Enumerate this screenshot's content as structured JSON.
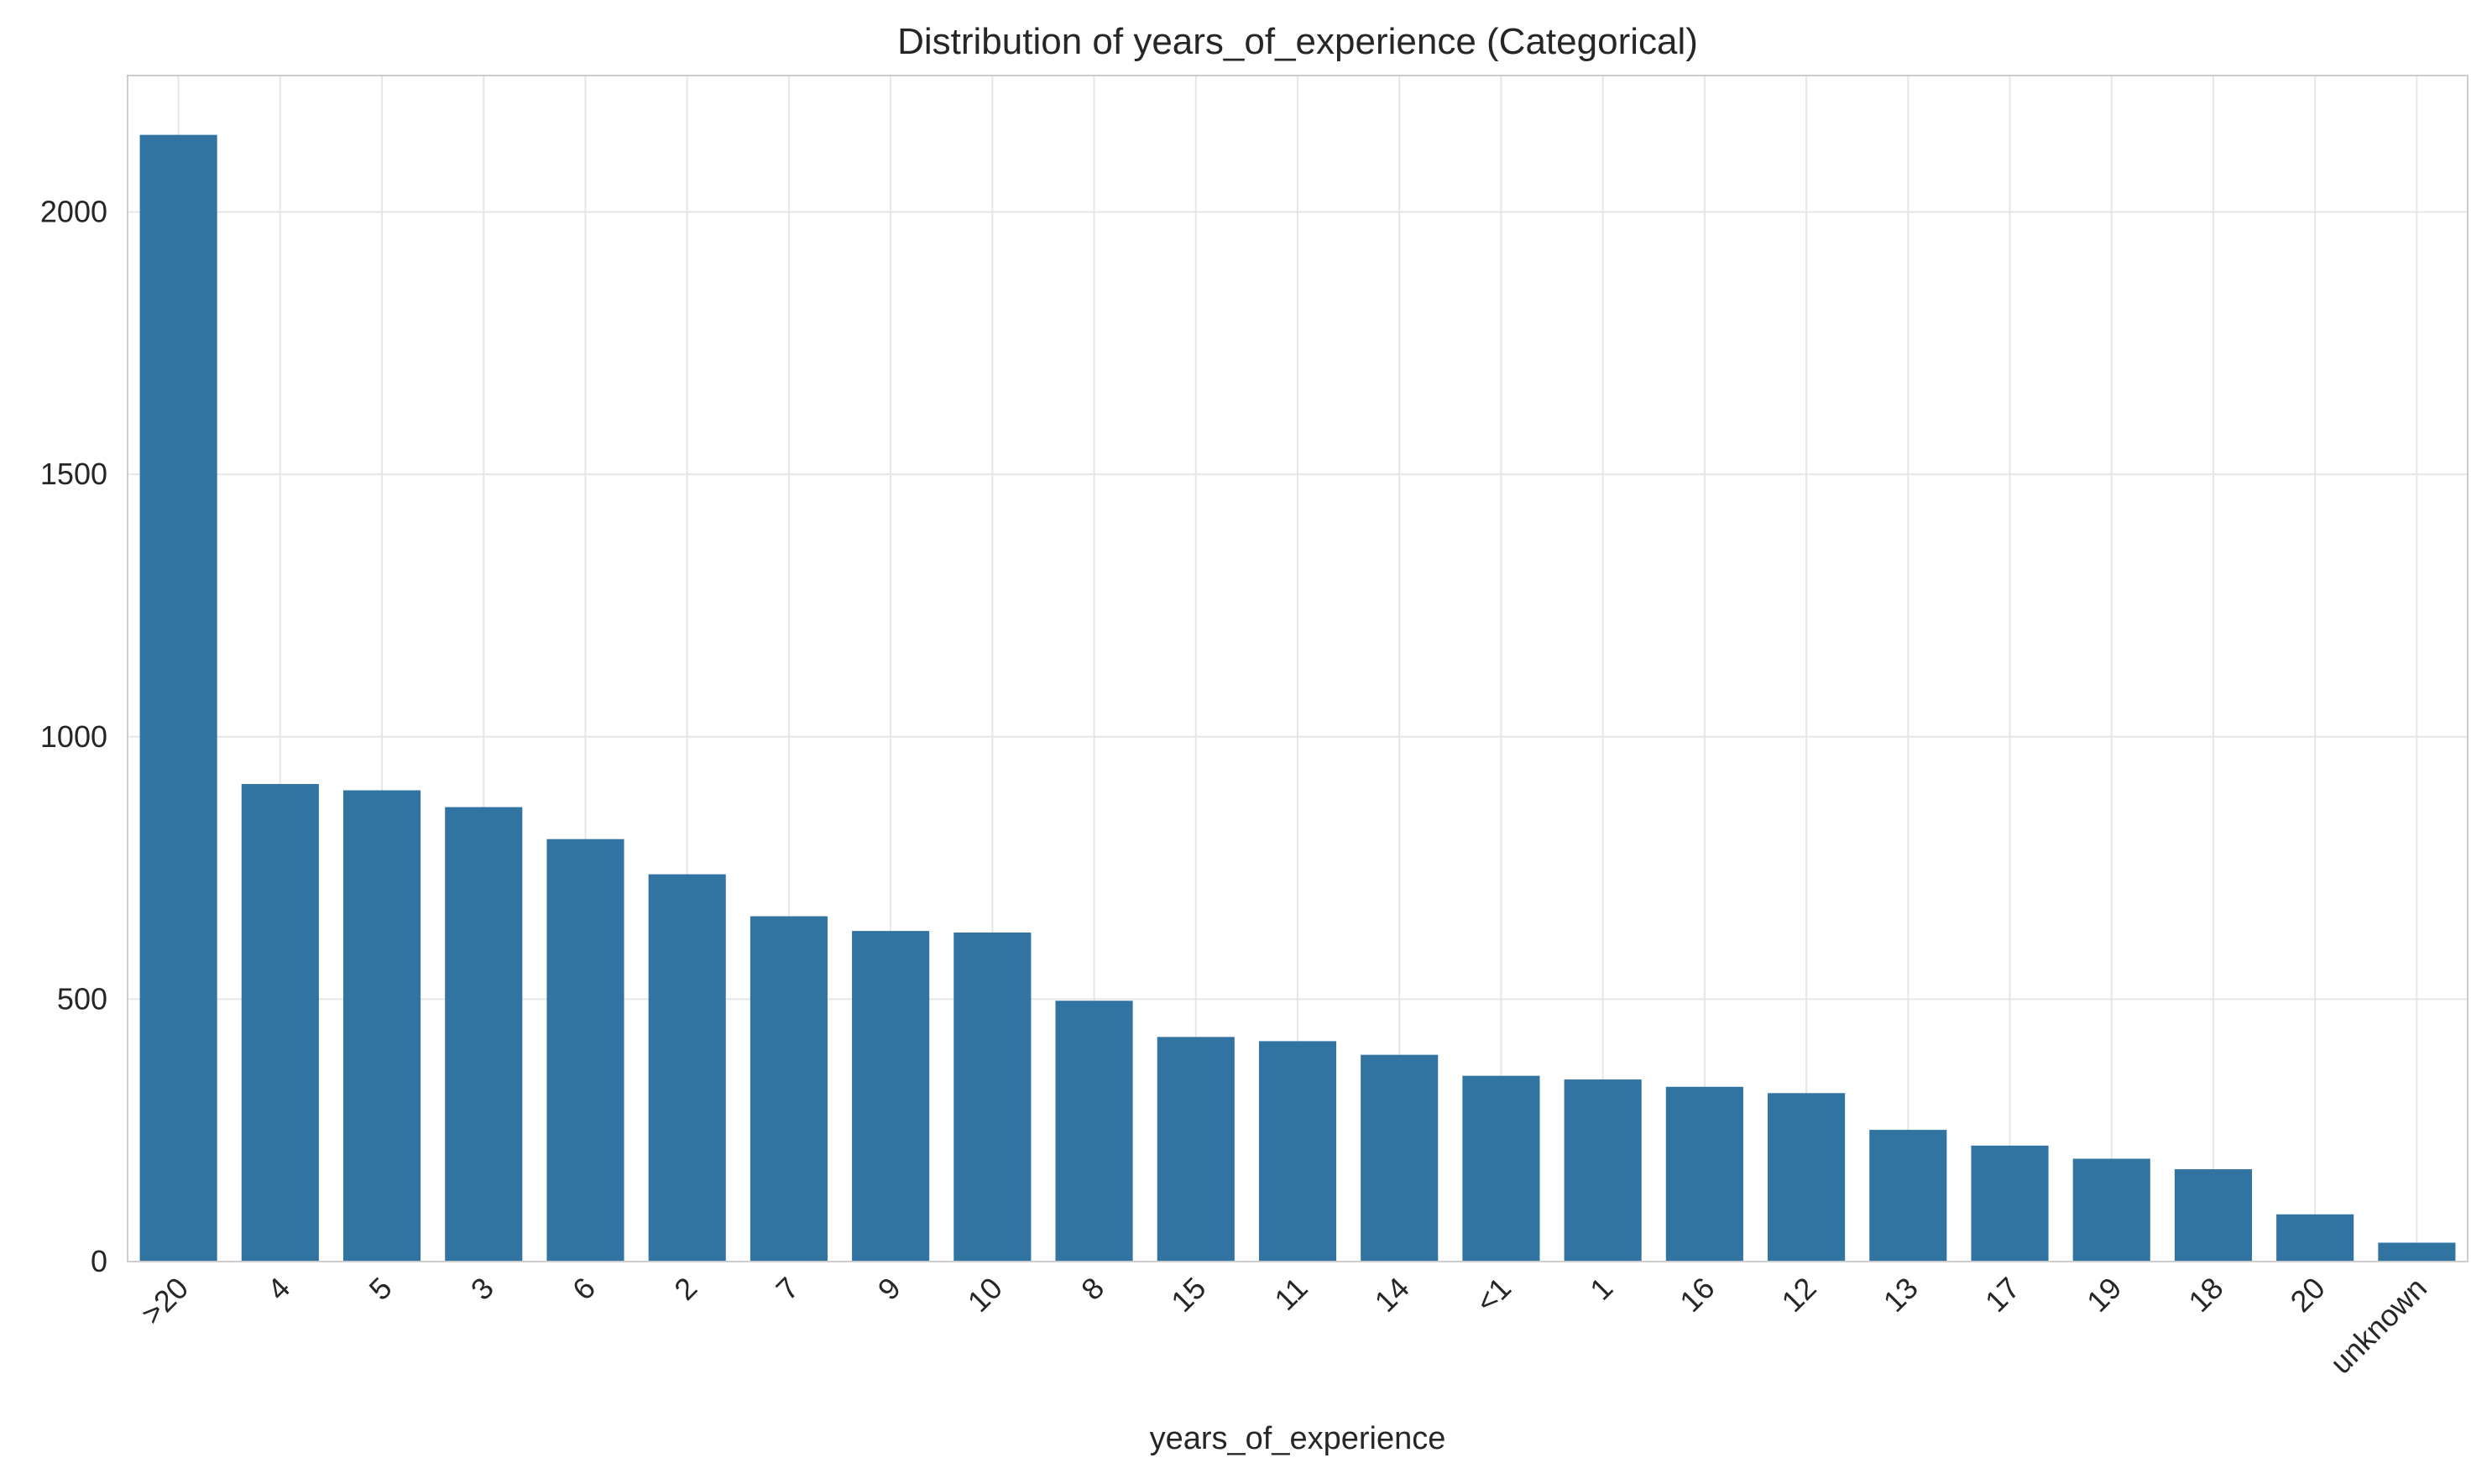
{
  "chart_data": {
    "type": "bar",
    "title": "Distribution of years_of_experience (Categorical)",
    "xlabel": "years_of_experience",
    "ylabel": "",
    "categories": [
      ">20",
      "4",
      "5",
      "3",
      "6",
      "2",
      "7",
      "9",
      "10",
      "8",
      "15",
      "11",
      "14",
      "<1",
      "1",
      "16",
      "12",
      "13",
      "17",
      "19",
      "18",
      "20",
      "unknown"
    ],
    "values": [
      2147,
      910,
      898,
      866,
      805,
      738,
      658,
      630,
      627,
      497,
      428,
      420,
      394,
      354,
      347,
      333,
      321,
      251,
      221,
      196,
      176,
      90,
      36
    ],
    "ylim": [
      0,
      2260
    ],
    "yticks": [
      0,
      500,
      1000,
      1500,
      2000
    ],
    "grid": true,
    "bar_color": "#3274a1",
    "grid_color": "#e6e6e6",
    "spine_color": "#cccccc"
  }
}
